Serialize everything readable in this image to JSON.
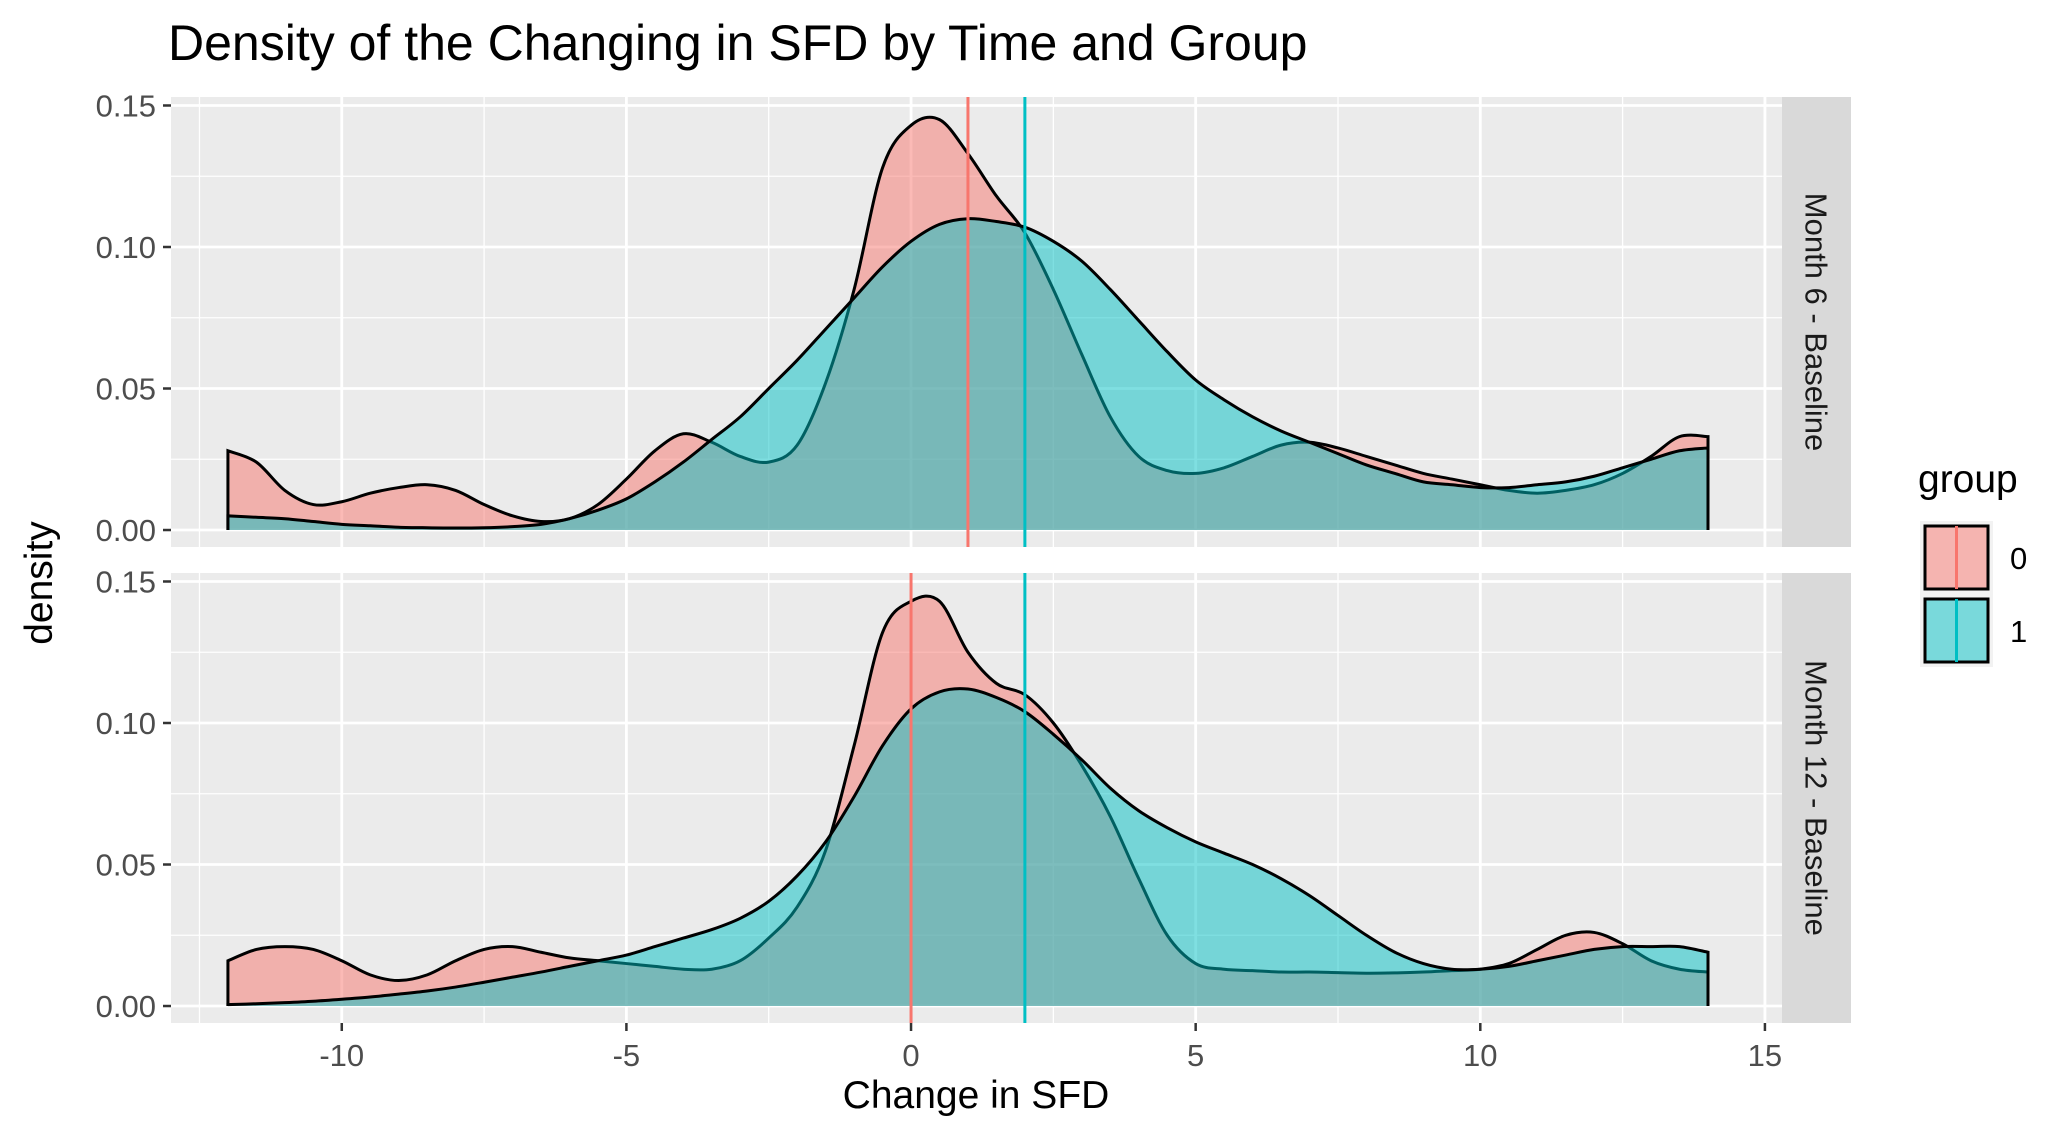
{
  "chart_data": {
    "type": "area",
    "title": "Density of the Changing in SFD by Time and Group",
    "xlabel": "Change in SFD",
    "ylabel": "density",
    "xlim": [
      -13,
      15.3
    ],
    "ylim": [
      -0.006,
      0.153
    ],
    "x_ticks": [
      -10,
      -5,
      0,
      5,
      10,
      15
    ],
    "x_tick_labels": [
      "-10",
      "-5",
      "0",
      "5",
      "10",
      "15"
    ],
    "y_ticks": [
      0,
      0.05,
      0.1,
      0.15
    ],
    "y_tick_labels": [
      "0.00",
      "0.05",
      "0.10",
      "0.15"
    ],
    "grid": true,
    "legend": {
      "title": "group",
      "position": "right",
      "items": [
        {
          "label": "0",
          "fill": "#F8766D",
          "line": "#F8766D"
        },
        {
          "label": "1",
          "fill": "#00BFC4",
          "line": "#00BFC4"
        }
      ]
    },
    "colors": {
      "group0_fill": "#F8766D",
      "group1_fill": "#00BFC4",
      "panel_bg": "#EBEBEB",
      "strip_bg": "#D9D9D9",
      "grid": "#FFFFFF",
      "outline": "#000000"
    },
    "facets": [
      {
        "strip_label": "Month 6 - Baseline",
        "vlines": [
          {
            "group": "0",
            "x": 1.0
          },
          {
            "group": "1",
            "x": 2.0
          }
        ],
        "series": [
          {
            "name": "0",
            "x": [
              -12,
              -11.5,
              -11,
              -10.5,
              -10,
              -9.5,
              -9,
              -8.5,
              -8,
              -7.5,
              -7,
              -6.5,
              -6,
              -5.5,
              -5,
              -4.5,
              -4,
              -3.5,
              -3,
              -2.5,
              -2,
              -1.5,
              -1,
              -0.5,
              0,
              0.5,
              1,
              1.5,
              2,
              2.5,
              3,
              3.5,
              4,
              4.5,
              5,
              5.5,
              6,
              6.5,
              7,
              7.5,
              8,
              8.5,
              9,
              9.5,
              10,
              10.5,
              11,
              11.5,
              12,
              12.5,
              13,
              13.5,
              14
            ],
            "y": [
              0.028,
              0.024,
              0.014,
              0.009,
              0.01,
              0.013,
              0.015,
              0.016,
              0.014,
              0.009,
              0.005,
              0.003,
              0.004,
              0.009,
              0.018,
              0.028,
              0.034,
              0.031,
              0.026,
              0.024,
              0.03,
              0.052,
              0.085,
              0.128,
              0.143,
              0.145,
              0.133,
              0.118,
              0.105,
              0.085,
              0.062,
              0.04,
              0.026,
              0.021,
              0.02,
              0.022,
              0.026,
              0.03,
              0.031,
              0.029,
              0.026,
              0.023,
              0.02,
              0.018,
              0.016,
              0.014,
              0.013,
              0.014,
              0.016,
              0.02,
              0.026,
              0.033,
              0.033
            ]
          },
          {
            "name": "1",
            "x": [
              -12,
              -11.5,
              -11,
              -10.5,
              -10,
              -9.5,
              -9,
              -8.5,
              -8,
              -7.5,
              -7,
              -6.5,
              -6,
              -5.5,
              -5,
              -4.5,
              -4,
              -3.5,
              -3,
              -2.5,
              -2,
              -1.5,
              -1,
              -0.5,
              0,
              0.5,
              1,
              1.5,
              2,
              2.5,
              3,
              3.5,
              4,
              4.5,
              5,
              5.5,
              6,
              6.5,
              7,
              7.5,
              8,
              8.5,
              9,
              9.5,
              10,
              10.5,
              11,
              11.5,
              12,
              12.5,
              13,
              13.5,
              14
            ],
            "y": [
              0.005,
              0.0045,
              0.004,
              0.003,
              0.002,
              0.0015,
              0.001,
              0.0008,
              0.0007,
              0.0008,
              0.0012,
              0.002,
              0.004,
              0.007,
              0.011,
              0.017,
              0.024,
              0.032,
              0.04,
              0.05,
              0.06,
              0.071,
              0.082,
              0.093,
              0.102,
              0.108,
              0.11,
              0.109,
              0.107,
              0.102,
              0.095,
              0.085,
              0.074,
              0.063,
              0.053,
              0.046,
              0.04,
              0.035,
              0.031,
              0.027,
              0.023,
              0.02,
              0.017,
              0.016,
              0.015,
              0.015,
              0.016,
              0.017,
              0.019,
              0.022,
              0.025,
              0.028,
              0.029
            ]
          }
        ]
      },
      {
        "strip_label": "Month 12 - Baseline",
        "vlines": [
          {
            "group": "0",
            "x": 0.0
          },
          {
            "group": "1",
            "x": 2.0
          }
        ],
        "series": [
          {
            "name": "0",
            "x": [
              -12,
              -11.5,
              -11,
              -10.5,
              -10,
              -9.5,
              -9,
              -8.5,
              -8,
              -7.5,
              -7,
              -6.5,
              -6,
              -5.5,
              -5,
              -4.5,
              -4,
              -3.5,
              -3,
              -2.5,
              -2,
              -1.5,
              -1,
              -0.5,
              0,
              0.5,
              1,
              1.5,
              2,
              2.5,
              3,
              3.5,
              4,
              4.5,
              5,
              5.5,
              6,
              6.5,
              7,
              7.5,
              8,
              8.5,
              9,
              9.5,
              10,
              10.5,
              11,
              11.5,
              12,
              12.5,
              13,
              13.5,
              14
            ],
            "y": [
              0.016,
              0.02,
              0.021,
              0.02,
              0.016,
              0.011,
              0.009,
              0.011,
              0.016,
              0.02,
              0.021,
              0.019,
              0.017,
              0.016,
              0.015,
              0.014,
              0.013,
              0.013,
              0.016,
              0.024,
              0.035,
              0.055,
              0.092,
              0.132,
              0.143,
              0.143,
              0.125,
              0.114,
              0.11,
              0.1,
              0.085,
              0.067,
              0.045,
              0.025,
              0.015,
              0.013,
              0.0125,
              0.012,
              0.012,
              0.0118,
              0.0116,
              0.0117,
              0.012,
              0.0125,
              0.013,
              0.015,
              0.02,
              0.025,
              0.026,
              0.022,
              0.016,
              0.013,
              0.012
            ]
          },
          {
            "name": "1",
            "x": [
              -12,
              -11.5,
              -11,
              -10.5,
              -10,
              -9.5,
              -9,
              -8.5,
              -8,
              -7.5,
              -7,
              -6.5,
              -6,
              -5.5,
              -5,
              -4.5,
              -4,
              -3.5,
              -3,
              -2.5,
              -2,
              -1.5,
              -1,
              -0.5,
              0,
              0.5,
              1,
              1.5,
              2,
              2.5,
              3,
              3.5,
              4,
              4.5,
              5,
              5.5,
              6,
              6.5,
              7,
              7.5,
              8,
              8.5,
              9,
              9.5,
              10,
              10.5,
              11,
              11.5,
              12,
              12.5,
              13,
              13.5,
              14
            ],
            "y": [
              0.0005,
              0.0008,
              0.0012,
              0.0017,
              0.0024,
              0.0032,
              0.0042,
              0.0053,
              0.0067,
              0.0084,
              0.0102,
              0.012,
              0.014,
              0.016,
              0.018,
              0.021,
              0.024,
              0.027,
              0.031,
              0.037,
              0.046,
              0.058,
              0.074,
              0.092,
              0.105,
              0.111,
              0.112,
              0.109,
              0.104,
              0.096,
              0.087,
              0.077,
              0.069,
              0.063,
              0.058,
              0.054,
              0.05,
              0.045,
              0.039,
              0.032,
              0.025,
              0.019,
              0.015,
              0.013,
              0.013,
              0.014,
              0.016,
              0.018,
              0.02,
              0.021,
              0.021,
              0.021,
              0.019
            ]
          }
        ]
      }
    ]
  }
}
